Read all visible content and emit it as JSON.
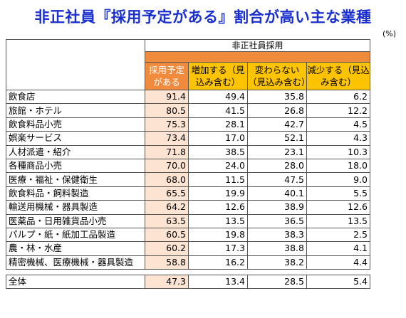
{
  "title": "非正社員『採用予定がある』割合が高い主な業種",
  "unit": "(%)",
  "chart_data": {
    "type": "table",
    "group_header": "非正社員採用",
    "columns": [
      "採用予定がある",
      "増加する（見込み含む）",
      "変わらない（見込み含む）",
      "減少する（見込み含む）"
    ],
    "rows": [
      {
        "label": "飲食店",
        "values": [
          "91.4",
          "49.4",
          "35.8",
          "6.2"
        ]
      },
      {
        "label": "旅館・ホテル",
        "values": [
          "80.5",
          "41.5",
          "26.8",
          "12.2"
        ]
      },
      {
        "label": "飲食料品小売",
        "values": [
          "75.3",
          "28.1",
          "42.7",
          "4.5"
        ]
      },
      {
        "label": "娯楽サービス",
        "values": [
          "73.4",
          "17.0",
          "52.1",
          "4.3"
        ]
      },
      {
        "label": "人材派遣・紹介",
        "values": [
          "71.8",
          "38.5",
          "23.1",
          "10.3"
        ]
      },
      {
        "label": "各種商品小売",
        "values": [
          "70.0",
          "24.0",
          "28.0",
          "18.0"
        ]
      },
      {
        "label": "医療・福祉・保健衛生",
        "values": [
          "68.0",
          "11.5",
          "47.5",
          "9.0"
        ]
      },
      {
        "label": "飲食料品・飼料製造",
        "values": [
          "65.5",
          "19.9",
          "40.1",
          "5.5"
        ]
      },
      {
        "label": "輸送用機械・器具製造",
        "values": [
          "64.2",
          "12.6",
          "38.9",
          "12.6"
        ]
      },
      {
        "label": "医薬品・日用雑貨品小売",
        "values": [
          "63.5",
          "13.5",
          "36.5",
          "13.5"
        ]
      },
      {
        "label": "パルプ・紙・紙加工品製造",
        "values": [
          "60.5",
          "19.8",
          "38.3",
          "2.5"
        ]
      },
      {
        "label": "農・林・水産",
        "values": [
          "60.2",
          "17.3",
          "38.8",
          "4.1"
        ]
      },
      {
        "label": "精密機械、医療機械・器具製造",
        "values": [
          "58.8",
          "16.2",
          "38.2",
          "4.4"
        ]
      }
    ],
    "total": {
      "label": "全体",
      "values": [
        "47.3",
        "13.4",
        "28.5",
        "5.4"
      ]
    }
  },
  "colors": {
    "title": "#1a2fd0",
    "header_orange": "#f08a3c",
    "header_yellow": "#fcc400",
    "highlight_column": "#fde3d2"
  }
}
